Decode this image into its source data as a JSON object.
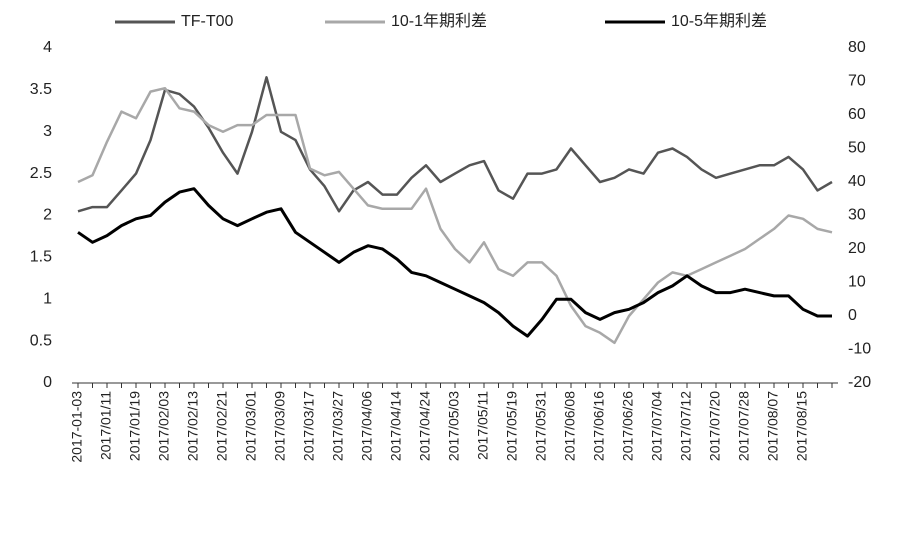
{
  "chart_data": {
    "type": "line",
    "categories": [
      "2017-01-03",
      null,
      "2017/01/11",
      null,
      "2017/01/19",
      null,
      "2017/02/03",
      null,
      "2017/02/13",
      null,
      "2017/02/21",
      null,
      "2017/03/01",
      null,
      "2017/03/09",
      null,
      "2017/03/17",
      null,
      "2017/03/27",
      null,
      "2017/04/06",
      null,
      "2017/04/14",
      null,
      "2017/04/24",
      null,
      "2017/05/03",
      null,
      "2017/05/11",
      null,
      "2017/05/19",
      null,
      "2017/05/31",
      null,
      "2017/06/08",
      null,
      "2017/06/16",
      null,
      "2017/06/26",
      null,
      "2017/07/04",
      null,
      "2017/07/12",
      null,
      "2017/07/20",
      null,
      "2017/07/28",
      null,
      "2017/08/07",
      null,
      "2017/08/15",
      null,
      null
    ],
    "series": [
      {
        "name": "TF-T00",
        "color": "#555555",
        "axis": "y",
        "values": [
          2.05,
          2.1,
          2.1,
          2.3,
          2.5,
          2.9,
          3.5,
          3.45,
          3.3,
          3.05,
          2.75,
          2.5,
          3.0,
          3.65,
          3.0,
          2.9,
          2.55,
          2.35,
          2.05,
          2.3,
          2.4,
          2.25,
          2.25,
          2.45,
          2.6,
          2.4,
          2.5,
          2.6,
          2.65,
          2.3,
          2.2,
          2.5,
          2.5,
          2.55,
          2.8,
          2.6,
          2.4,
          2.45,
          2.55,
          2.5,
          2.75,
          2.8,
          2.7,
          2.55,
          2.45,
          2.5,
          2.55,
          2.6,
          2.6,
          2.7,
          2.55,
          2.3,
          2.4
        ]
      },
      {
        "name": "10-1年期利差",
        "color": "#a8a8a8",
        "axis": "y2",
        "values": [
          40,
          42,
          52,
          61,
          59,
          67,
          68,
          62,
          61,
          57,
          55,
          57,
          57,
          60,
          60,
          60,
          44,
          42,
          43,
          38,
          33,
          32,
          32,
          32,
          38,
          26,
          20,
          16,
          22,
          14,
          12,
          16,
          16,
          12,
          3,
          -3,
          -5,
          -8,
          0,
          5,
          10,
          13,
          12,
          14,
          16,
          18,
          20,
          23,
          26,
          30,
          29,
          26,
          25
        ]
      },
      {
        "name": "10-5年期利差",
        "color": "#000000",
        "axis": "y2",
        "values": [
          25,
          22,
          24,
          27,
          29,
          30,
          34,
          37,
          38,
          33,
          29,
          27,
          29,
          31,
          32,
          25,
          22,
          19,
          16,
          19,
          21,
          20,
          17,
          13,
          12,
          10,
          8,
          6,
          4,
          1,
          -3,
          -6,
          -1,
          5,
          5,
          1,
          -1,
          1,
          2,
          4,
          7,
          9,
          12,
          9,
          7,
          7,
          8,
          7,
          6,
          6,
          2,
          0,
          0
        ]
      }
    ],
    "ylim": [
      0,
      4
    ],
    "yticks": [
      0,
      0.5,
      1,
      1.5,
      2,
      2.5,
      3,
      3.5,
      4
    ],
    "y2lim": [
      -20,
      80
    ],
    "y2ticks": [
      -20,
      -10,
      0,
      10,
      20,
      30,
      40,
      50,
      60,
      70,
      80
    ]
  }
}
